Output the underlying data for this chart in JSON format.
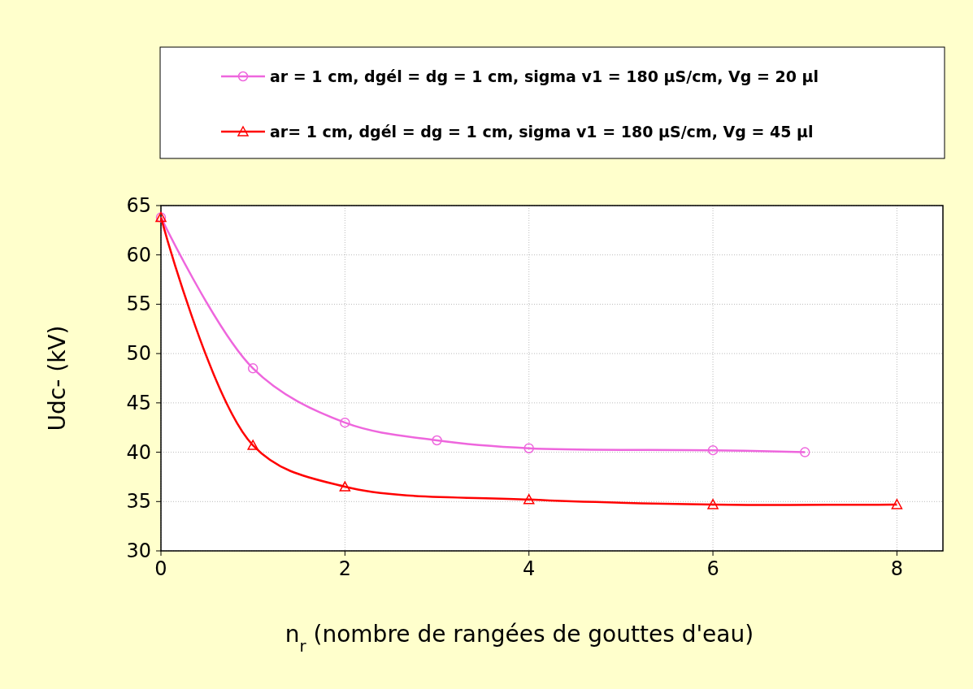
{
  "chart_data": {
    "type": "line",
    "xlabel": "n$_{r}$ (nombre de rangées de gouttes d'eau)",
    "ylabel": "Udc- (kV)",
    "xlim": [
      0,
      8.5
    ],
    "xticks": [
      0,
      2,
      4,
      6,
      8
    ],
    "ylim": [
      30,
      65
    ],
    "yticks": [
      30,
      35,
      40,
      45,
      50,
      55,
      60,
      65
    ],
    "grid": true,
    "legend": "top",
    "series": [
      {
        "name": "ar = 1 cm, dgél = dg = 1 cm, sigma v1 = 180 µS/cm, Vg = 20 µl",
        "color": "#ee66dd",
        "marker": "circle",
        "x": [
          0,
          1,
          2,
          3,
          4,
          6,
          7
        ],
        "values": [
          63.8,
          48.5,
          43,
          41.2,
          40.4,
          40.2,
          40
        ]
      },
      {
        "name": "ar= 1 cm, dgél = dg = 1 cm, sigma v1 = 180 µS/cm, Vg = 45 µl",
        "color": "#ff0000",
        "marker": "triangle",
        "x": [
          0,
          1,
          2,
          4,
          6,
          8
        ],
        "values": [
          63.8,
          40.7,
          36.5,
          35.2,
          34.7,
          34.7
        ]
      }
    ]
  }
}
